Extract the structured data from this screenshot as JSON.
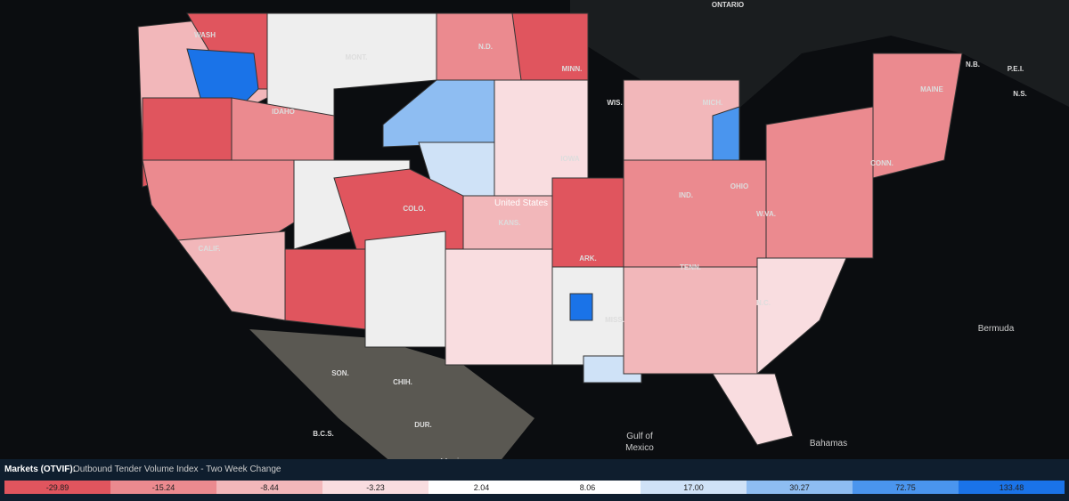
{
  "map": {
    "place_labels": [
      "ONTARIO",
      "WASH",
      "MONT.",
      "N.D.",
      "MINN.",
      "IDAHO",
      "WIS.",
      "MICH.",
      "IOWA",
      "COLO.",
      "KANS.",
      "United States",
      "CALIF.",
      "ARK.",
      "TENN.",
      "MISS.",
      "N.C.",
      "W.VA.",
      "OHIO",
      "IND.",
      "CONN.",
      "MAINE",
      "N.B.",
      "P.E.I.",
      "N.S.",
      "SON.",
      "CHIH.",
      "B.C.S.",
      "DUR.",
      "Bermuda",
      "Gulf of",
      "Mexico",
      "Bahamas",
      "Mexico"
    ]
  },
  "legend": {
    "title": "Markets (OTVIF):",
    "subtitle": "Outbound Tender Volume Index - Two Week Change",
    "stops": [
      {
        "label": "-29.89",
        "color": "#e0555e"
      },
      {
        "label": "-15.24",
        "color": "#eb8a8f"
      },
      {
        "label": "-8.44",
        "color": "#f2b7ba"
      },
      {
        "label": "-3.23",
        "color": "#f9dde0"
      },
      {
        "label": "2.04",
        "color": "#ffffff"
      },
      {
        "label": "8.06",
        "color": "#ffffff"
      },
      {
        "label": "17.00",
        "color": "#cfe2f7"
      },
      {
        "label": "30.27",
        "color": "#8ebdf2"
      },
      {
        "label": "72.75",
        "color": "#4a95ee"
      },
      {
        "label": "133.48",
        "color": "#1a73e8"
      }
    ]
  }
}
